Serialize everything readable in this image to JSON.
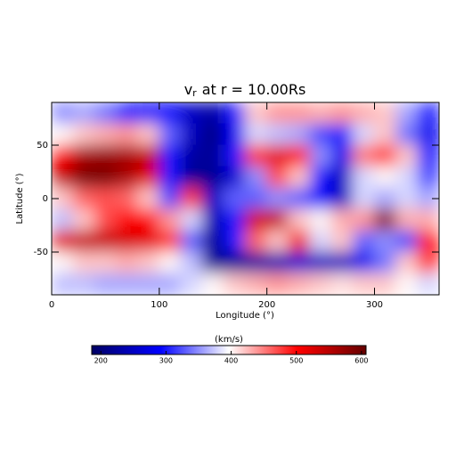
{
  "chart_data": {
    "type": "heatmap",
    "title": {
      "main": "v",
      "sub": "r",
      "rest": "at r = 10.00Rs"
    },
    "xlabel": "Longitude (°)",
    "ylabel": "Latitude (°)",
    "xlim": [
      0,
      360
    ],
    "ylim": [
      -90,
      90
    ],
    "xticks": [
      0,
      100,
      200,
      300
    ],
    "yticks": [
      -50,
      0,
      50
    ],
    "x": [
      10,
      30,
      50,
      70,
      90,
      110,
      130,
      150,
      170,
      190,
      210,
      230,
      250,
      270,
      290,
      310,
      330,
      350
    ],
    "y": [
      80,
      60,
      40,
      20,
      0,
      -20,
      -40,
      -60,
      -80
    ],
    "z": [
      [
        350,
        360,
        340,
        300,
        290,
        290,
        250,
        230,
        300,
        420,
        440,
        440,
        430,
        440,
        430,
        420,
        360,
        300
      ],
      [
        400,
        420,
        430,
        440,
        420,
        330,
        250,
        210,
        280,
        380,
        370,
        360,
        320,
        300,
        380,
        420,
        340,
        280
      ],
      [
        500,
        560,
        570,
        560,
        540,
        300,
        230,
        220,
        300,
        480,
        520,
        500,
        350,
        280,
        450,
        480,
        420,
        300
      ],
      [
        540,
        590,
        590,
        560,
        520,
        300,
        220,
        220,
        260,
        350,
        470,
        420,
        300,
        250,
        380,
        400,
        380,
        320
      ],
      [
        420,
        460,
        470,
        460,
        420,
        320,
        480,
        250,
        330,
        330,
        350,
        330,
        290,
        250,
        380,
        360,
        380,
        360
      ],
      [
        370,
        420,
        470,
        500,
        500,
        440,
        380,
        240,
        300,
        530,
        540,
        420,
        400,
        430,
        440,
        580,
        430,
        430
      ],
      [
        520,
        540,
        540,
        530,
        520,
        480,
        330,
        220,
        300,
        460,
        420,
        510,
        380,
        420,
        330,
        350,
        320,
        500
      ],
      [
        400,
        420,
        420,
        430,
        420,
        400,
        370,
        220,
        220,
        230,
        240,
        260,
        250,
        250,
        280,
        340,
        420,
        480
      ],
      [
        370,
        370,
        360,
        360,
        360,
        360,
        380,
        400,
        420,
        430,
        440,
        430,
        420,
        410,
        420,
        420,
        400,
        380
      ]
    ],
    "colormap": [
      "#000064",
      "#0000ff",
      "#ffffff",
      "#ff0000",
      "#640000"
    ],
    "colorbar": {
      "label": "(km/s)",
      "lim": [
        186,
        607
      ],
      "ticks": [
        200,
        300,
        400,
        500,
        600
      ]
    }
  }
}
